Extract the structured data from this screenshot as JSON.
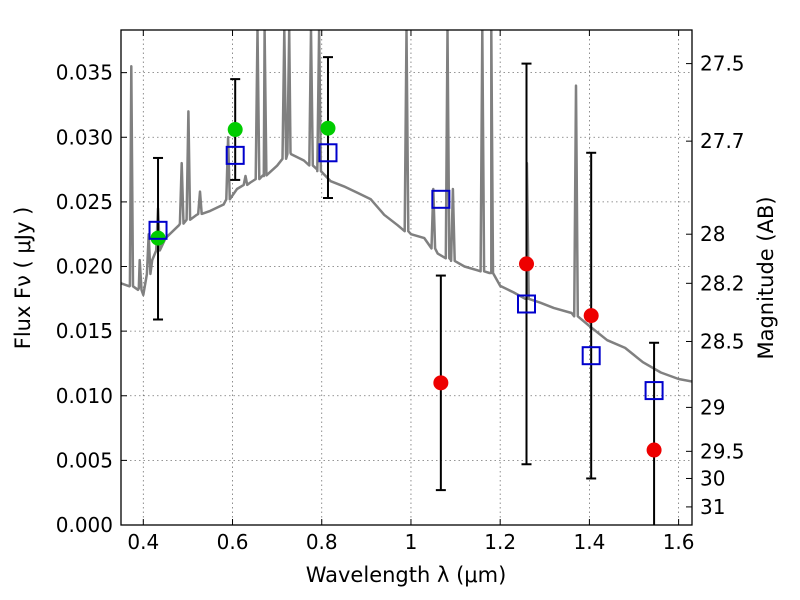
{
  "chart_data": {
    "type": "scatter",
    "title": "",
    "xlabel": "Wavelength  λ (μm)",
    "ylabel": "Flux  Fν  ( μJy )",
    "y2label": "Magnitude (AB)",
    "xlim": [
      0.35,
      1.63
    ],
    "ylim": [
      0.0,
      0.0383
    ],
    "grid": true,
    "x_ticks": [
      0.4,
      0.6,
      0.8,
      1.0,
      1.2,
      1.4,
      1.6
    ],
    "x_tick_labels": [
      "0.4",
      "0.6",
      "0.8",
      "1",
      "1.2",
      "1.4",
      "1.6"
    ],
    "y_ticks": [
      0.0,
      0.005,
      0.01,
      0.015,
      0.02,
      0.025,
      0.03,
      0.035
    ],
    "y_tick_labels": [
      "0.000",
      "0.005",
      "0.010",
      "0.015",
      "0.020",
      "0.025",
      "0.030",
      "0.035"
    ],
    "y2_ticks": [
      {
        "label": "27.5",
        "flux": 0.0357
      },
      {
        "label": "27.7",
        "flux": 0.0297
      },
      {
        "label": "28",
        "flux": 0.0225
      },
      {
        "label": "28.2",
        "flux": 0.0187
      },
      {
        "label": "28.5",
        "flux": 0.0142
      },
      {
        "label": "29",
        "flux": 0.0091
      },
      {
        "label": "29.5",
        "flux": 0.0057
      },
      {
        "label": "30",
        "flux": 0.0036
      },
      {
        "label": "31",
        "flux": 0.0014
      }
    ],
    "colors": {
      "model_spectrum": "#808080",
      "model_photometry": "#0000cc",
      "detections": "#00cc00",
      "low_significance": "#ee0000",
      "error_bars": "#000000"
    },
    "series": [
      {
        "kind": "line",
        "points": [
          [
            0.35,
            0.0187
          ],
          [
            0.37,
            0.0185
          ],
          [
            0.39,
            0.0183
          ],
          [
            0.4,
            0.0178
          ],
          [
            0.42,
            0.0205
          ],
          [
            0.45,
            0.0222
          ],
          [
            0.48,
            0.0232
          ],
          [
            0.52,
            0.024
          ],
          [
            0.55,
            0.0243
          ],
          [
            0.58,
            0.0248
          ],
          [
            0.61,
            0.026
          ],
          [
            0.64,
            0.0265
          ],
          [
            0.67,
            0.027
          ],
          [
            0.7,
            0.0278
          ],
          [
            0.73,
            0.0288
          ],
          [
            0.76,
            0.0282
          ],
          [
            0.79,
            0.0275
          ],
          [
            0.82,
            0.0266
          ],
          [
            0.85,
            0.0262
          ],
          [
            0.88,
            0.0257
          ],
          [
            0.91,
            0.0252
          ],
          [
            0.94,
            0.024
          ],
          [
            0.97,
            0.0232
          ],
          [
            1.0,
            0.0225
          ],
          [
            1.03,
            0.0222
          ],
          [
            1.06,
            0.021
          ],
          [
            1.09,
            0.0205
          ],
          [
            1.12,
            0.02
          ],
          [
            1.15,
            0.0197
          ],
          [
            1.18,
            0.0195
          ],
          [
            1.2,
            0.0185
          ],
          [
            1.23,
            0.018
          ],
          [
            1.26,
            0.0175
          ],
          [
            1.29,
            0.0172
          ],
          [
            1.32,
            0.0168
          ],
          [
            1.36,
            0.0164
          ],
          [
            1.4,
            0.0154
          ],
          [
            1.44,
            0.0143
          ],
          [
            1.48,
            0.0137
          ],
          [
            1.52,
            0.0126
          ],
          [
            1.56,
            0.0118
          ],
          [
            1.6,
            0.0113
          ],
          [
            1.63,
            0.0111
          ]
        ],
        "emission_lines": [
          [
            0.373,
            0.0355
          ],
          [
            0.392,
            0.0205
          ],
          [
            0.412,
            0.0225
          ],
          [
            0.433,
            0.0245
          ],
          [
            0.486,
            0.028
          ],
          [
            0.501,
            0.032
          ],
          [
            0.527,
            0.0258
          ],
          [
            0.59,
            0.03
          ],
          [
            0.629,
            0.027
          ],
          [
            0.656,
            0.0383
          ],
          [
            0.672,
            0.0383
          ],
          [
            0.716,
            0.0383
          ],
          [
            0.727,
            0.0383
          ],
          [
            0.776,
            0.0383
          ],
          [
            0.794,
            0.0383
          ],
          [
            0.99,
            0.0383
          ],
          [
            1.05,
            0.026
          ],
          [
            1.082,
            0.0383
          ],
          [
            1.094,
            0.026
          ],
          [
            1.16,
            0.0383
          ],
          [
            1.18,
            0.0383
          ],
          [
            1.26,
            0.028
          ],
          [
            1.37,
            0.034
          ]
        ]
      },
      {
        "kind": "squares",
        "points": [
          [
            0.433,
            0.0228
          ],
          [
            0.606,
            0.0286
          ],
          [
            0.814,
            0.0288
          ],
          [
            1.067,
            0.0252
          ],
          [
            1.259,
            0.0171
          ],
          [
            1.404,
            0.0131
          ],
          [
            1.545,
            0.0104
          ]
        ]
      },
      {
        "kind": "circles",
        "points": [
          [
            0.433,
            0.0222
          ],
          [
            0.606,
            0.0306
          ],
          [
            0.814,
            0.0307
          ]
        ]
      },
      {
        "kind": "circles",
        "points": [
          [
            1.067,
            0.011
          ],
          [
            1.259,
            0.0202
          ],
          [
            1.404,
            0.0162
          ],
          [
            1.545,
            0.0058
          ]
        ]
      },
      {
        "kind": "error_bars",
        "bars": [
          {
            "x": 0.433,
            "low": 0.0159,
            "high": 0.0284
          },
          {
            "x": 0.606,
            "low": 0.0267,
            "high": 0.0345
          },
          {
            "x": 0.814,
            "low": 0.0253,
            "high": 0.0362
          },
          {
            "x": 1.067,
            "low": 0.0027,
            "high": 0.0193
          },
          {
            "x": 1.259,
            "low": 0.0047,
            "high": 0.0357
          },
          {
            "x": 1.404,
            "low": 0.0036,
            "high": 0.0288
          },
          {
            "x": 1.545,
            "low": -0.001,
            "high": 0.0141
          }
        ]
      }
    ]
  }
}
